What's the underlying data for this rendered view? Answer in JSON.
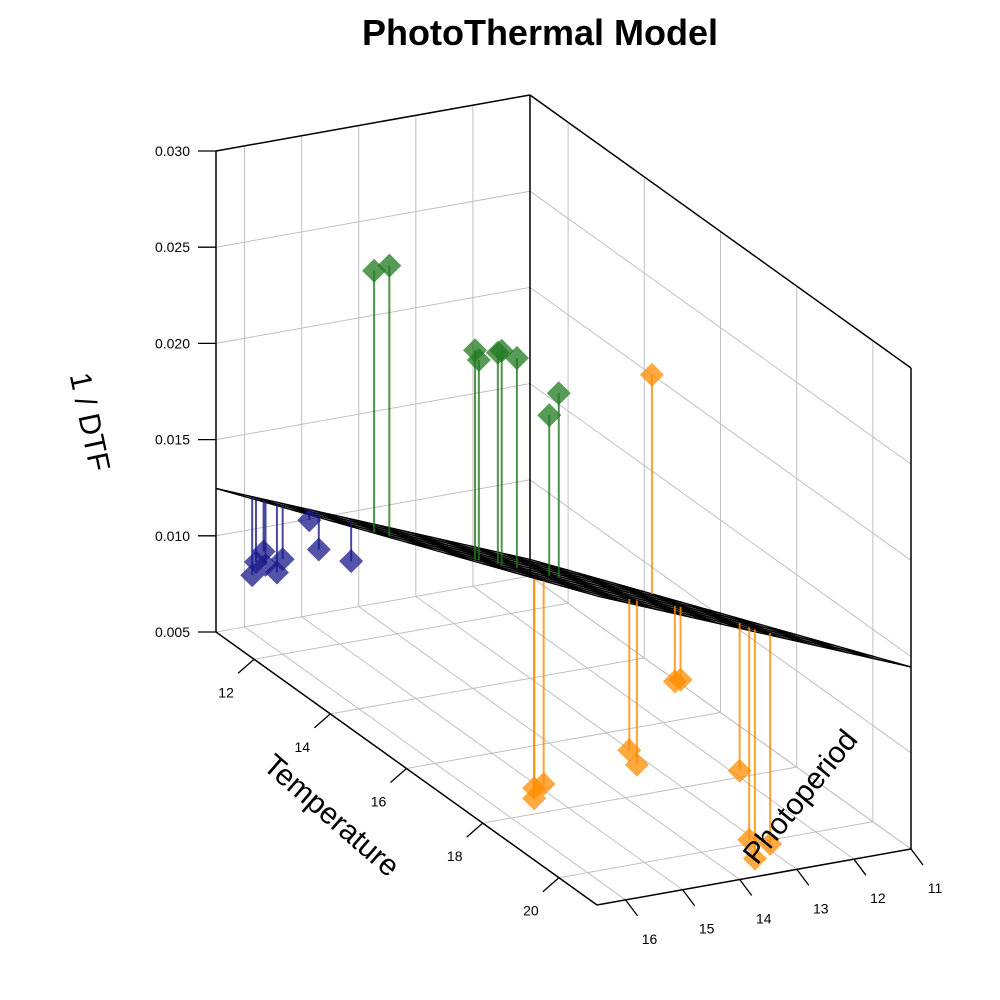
{
  "chart_data": {
    "type": "scatter",
    "title": "PhotoThermal Model",
    "xlabel": "Temperature",
    "ylabel": "Photoperiod",
    "zlabel": "1 / DTF",
    "xlim": [
      11,
      21
    ],
    "ylim": [
      11,
      16.5
    ],
    "zlim": [
      0.005,
      0.03
    ],
    "x_ticks": [
      "12",
      "14",
      "16",
      "18",
      "20"
    ],
    "y_ticks": [
      "11",
      "12",
      "13",
      "14",
      "15",
      "16"
    ],
    "z_ticks": [
      "0.005",
      "0.010",
      "0.015",
      "0.020",
      "0.025",
      "0.030"
    ],
    "grid": true,
    "surface": {
      "type": "plane",
      "color": "#000000"
    },
    "series": [
      {
        "color": "#1a1a8c",
        "points": [
          {
            "x": 11.2,
            "y": 15.0,
            "z": 0.0103
          },
          {
            "x": 11.2,
            "y": 15.8,
            "z": 0.0091
          },
          {
            "x": 11.3,
            "y": 16.0,
            "z": 0.0088
          },
          {
            "x": 11.5,
            "y": 16.2,
            "z": 0.0085
          },
          {
            "x": 12.0,
            "y": 16.1,
            "z": 0.0093
          },
          {
            "x": 12.0,
            "y": 16.3,
            "z": 0.0098
          },
          {
            "x": 12.6,
            "y": 16.4,
            "z": 0.011
          },
          {
            "x": 12.0,
            "y": 14.8,
            "z": 0.0092
          },
          {
            "x": 11.6,
            "y": 15.1,
            "z": 0.0094
          }
        ]
      },
      {
        "color": "#ff8c00",
        "points": [
          {
            "x": 14.2,
            "y": 11.0,
            "z": 0.02
          },
          {
            "x": 17.5,
            "y": 12.8,
            "z": 0.0097
          },
          {
            "x": 17.2,
            "y": 12.5,
            "z": 0.0092
          },
          {
            "x": 18.6,
            "y": 12.4,
            "z": 0.0064
          },
          {
            "x": 19.6,
            "y": 12.9,
            "z": 0.0045
          },
          {
            "x": 19.9,
            "y": 13.0,
            "z": 0.004
          },
          {
            "x": 20.0,
            "y": 12.8,
            "z": 0.0048
          },
          {
            "x": 19.0,
            "y": 14.6,
            "z": 0.0092
          },
          {
            "x": 18.9,
            "y": 14.4,
            "z": 0.0082
          },
          {
            "x": 19.5,
            "y": 16.6,
            "z": 0.009
          },
          {
            "x": 19.6,
            "y": 16.5,
            "z": 0.0093
          },
          {
            "x": 19.8,
            "y": 16.8,
            "z": 0.009
          }
        ]
      },
      {
        "color": "#1f7a1f",
        "points": [
          {
            "x": 16.4,
            "y": 14.1,
            "z": 0.0238
          },
          {
            "x": 16.6,
            "y": 14.4,
            "z": 0.0231
          },
          {
            "x": 16.3,
            "y": 15.1,
            "z": 0.0263
          },
          {
            "x": 16.5,
            "y": 14.9,
            "z": 0.0262
          },
          {
            "x": 16.7,
            "y": 15.7,
            "z": 0.0268
          },
          {
            "x": 16.9,
            "y": 15.9,
            "z": 0.0277
          },
          {
            "x": 17.0,
            "y": 15.5,
            "z": 0.0276
          },
          {
            "x": 15.1,
            "y": 16.2,
            "z": 0.0297
          },
          {
            "x": 15.0,
            "y": 16.4,
            "z": 0.0294
          }
        ]
      }
    ]
  }
}
